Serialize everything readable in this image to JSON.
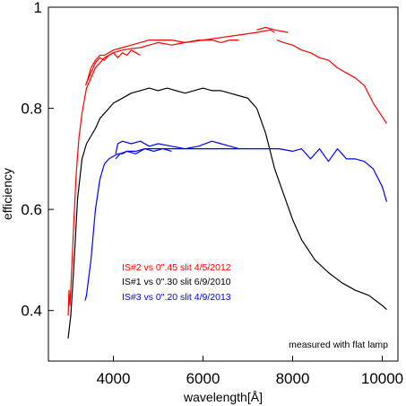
{
  "chart_data": {
    "type": "line",
    "xlabel": "wavelength[Å]",
    "ylabel": "efficiency",
    "xlim": [
      2550,
      10350
    ],
    "ylim": [
      0.3,
      1.0
    ],
    "x_ticks": [
      4000,
      6000,
      8000,
      10000
    ],
    "x_tick_labels": [
      "4000",
      "6000",
      "8000",
      "10000"
    ],
    "y_ticks": [
      0.4,
      0.6,
      0.8,
      1.0
    ],
    "y_tick_labels": [
      "0.4",
      "0.6",
      "0.8",
      "1"
    ],
    "grid": false,
    "annotation": "measured with flat lamp",
    "series": [
      {
        "name": "IS#2 vs 0\".45 slit  4/5/2012",
        "color": "#ff0000",
        "segments": [
          {
            "x": [
              2990,
              3010,
              3030,
              3050,
              3080,
              3120,
              3170,
              3230,
              3300,
              3400,
              3500,
              3600,
              3700,
              3800,
              3900,
              4000,
              4200,
              4400,
              4600,
              4800,
              5000,
              5300,
              5600,
              6000,
              6400,
              6800,
              7200,
              7500,
              7600
            ],
            "y": [
              0.39,
              0.44,
              0.41,
              0.445,
              0.5,
              0.58,
              0.67,
              0.74,
              0.79,
              0.84,
              0.86,
              0.88,
              0.89,
              0.9,
              0.905,
              0.91,
              0.915,
              0.918,
              0.92,
              0.925,
              0.93,
              0.925,
              0.93,
              0.935,
              0.94,
              0.945,
              0.95,
              0.955,
              0.95
            ]
          },
          {
            "x": [
              3380,
              3420,
              3500,
              3600,
              3700,
              3800,
              3900,
              4000,
              4200,
              4400,
              4600,
              4800,
              5000,
              5300,
              5600,
              5900,
              6200,
              6400,
              6600,
              6800
            ],
            "y": [
              0.845,
              0.855,
              0.88,
              0.895,
              0.905,
              0.905,
              0.91,
              0.915,
              0.92,
              0.925,
              0.93,
              0.935,
              0.935,
              0.935,
              0.93,
              0.935,
              0.935,
              0.93,
              0.935,
              0.935
            ]
          },
          {
            "x": [
              3400,
              3500,
              3600,
              3700,
              3800,
              3900,
              4000,
              4100,
              4200,
              4300,
              4400,
              4500,
              4600
            ],
            "y": [
              0.85,
              0.87,
              0.89,
              0.9,
              0.895,
              0.905,
              0.91,
              0.9,
              0.91,
              0.905,
              0.915,
              0.91,
              0.905
            ]
          },
          {
            "x": [
              7200,
              7400,
              7600,
              7900
            ],
            "y": [
              0.955,
              0.96,
              0.955,
              0.95
            ]
          },
          {
            "x": [
              7650,
              7800,
              8000,
              8200,
              8400,
              8600,
              8800,
              9000,
              9200,
              9400,
              9600,
              9800,
              9950,
              10100
            ],
            "y": [
              0.935,
              0.93,
              0.925,
              0.915,
              0.91,
              0.9,
              0.895,
              0.88,
              0.87,
              0.86,
              0.845,
              0.81,
              0.79,
              0.77
            ]
          }
        ]
      },
      {
        "name": "IS#1 vs 0\".30 slit  6/9/2010",
        "color": "#000000",
        "segments": [
          {
            "x": [
              2990,
              3050,
              3120,
              3200,
              3300,
              3400,
              3500,
              3600,
              3700,
              3800,
              3900,
              4000,
              4200,
              4400,
              4600,
              4800,
              5000,
              5200,
              5400,
              5600,
              5800,
              6000,
              6200,
              6400,
              6600,
              6800,
              7000,
              7200,
              7400,
              7600,
              7800,
              8000,
              8200,
              8500,
              8800,
              9100,
              9400,
              9700,
              10000,
              10100
            ],
            "y": [
              0.345,
              0.39,
              0.49,
              0.62,
              0.7,
              0.73,
              0.745,
              0.76,
              0.78,
              0.79,
              0.8,
              0.81,
              0.82,
              0.83,
              0.835,
              0.84,
              0.835,
              0.84,
              0.835,
              0.83,
              0.835,
              0.84,
              0.835,
              0.835,
              0.83,
              0.825,
              0.82,
              0.8,
              0.75,
              0.68,
              0.63,
              0.58,
              0.54,
              0.5,
              0.475,
              0.455,
              0.44,
              0.43,
              0.41,
              0.402
            ]
          }
        ]
      },
      {
        "name": "IS#3 vs 0\".20 slit  4/9/2013",
        "color": "#0000ff",
        "segments": [
          {
            "x": [
              3370,
              3400,
              3500,
              3600,
              3700,
              3800,
              3900,
              4000,
              4100,
              4200,
              4300,
              4500,
              4700,
              5000,
              5300,
              5600,
              5900,
              6200,
              6500,
              6800,
              7100,
              7400,
              7700,
              8000,
              8200,
              8400,
              8600,
              8800,
              9000,
              9200,
              9400,
              9600,
              9800,
              10000,
              10100
            ],
            "y": [
              0.42,
              0.43,
              0.5,
              0.6,
              0.66,
              0.69,
              0.7,
              0.705,
              0.71,
              0.71,
              0.715,
              0.715,
              0.72,
              0.72,
              0.72,
              0.72,
              0.72,
              0.72,
              0.72,
              0.72,
              0.72,
              0.72,
              0.72,
              0.715,
              0.72,
              0.7,
              0.72,
              0.695,
              0.72,
              0.7,
              0.7,
              0.695,
              0.68,
              0.645,
              0.615
            ]
          },
          {
            "x": [
              4050,
              4100,
              4200,
              4400,
              4600,
              4800,
              5000,
              5300,
              5600,
              5900,
              6200,
              6400,
              6600,
              6800
            ],
            "y": [
              0.71,
              0.73,
              0.735,
              0.73,
              0.735,
              0.725,
              0.73,
              0.725,
              0.72,
              0.725,
              0.735,
              0.73,
              0.725,
              0.72
            ]
          },
          {
            "x": [
              4050,
              4150,
              4300,
              4500,
              4700,
              4900,
              5100,
              5300
            ],
            "y": [
              0.7,
              0.71,
              0.715,
              0.71,
              0.72,
              0.715,
              0.72,
              0.715
            ]
          }
        ]
      }
    ]
  }
}
